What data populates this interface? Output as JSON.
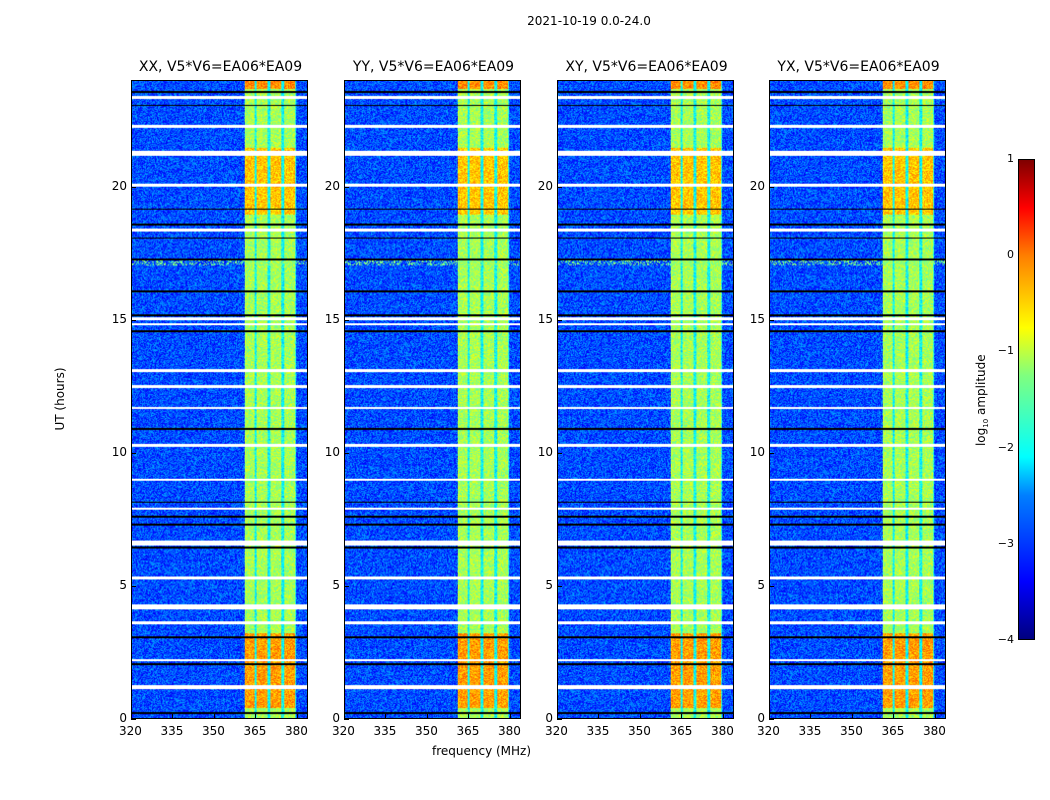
{
  "suptitle": "2021-10-19 0.0-24.0",
  "chart_data": {
    "type": "heatmap",
    "panels": [
      {
        "title": "XX, V5*V6=EA06*EA09"
      },
      {
        "title": "YY, V5*V6=EA06*EA09"
      },
      {
        "title": "XY, V5*V6=EA06*EA09"
      },
      {
        "title": "YX, V5*V6=EA06*EA09"
      }
    ],
    "xlabel": "frequency (MHz)",
    "ylabel": "UT (hours)",
    "xlim": [
      320,
      384
    ],
    "ylim": [
      0,
      24
    ],
    "xticks": [
      "320",
      "335",
      "350",
      "365",
      "380"
    ],
    "xtick_values": [
      320,
      335,
      350,
      365,
      380
    ],
    "yticks": [
      "0",
      "5",
      "10",
      "15",
      "20"
    ],
    "ytick_values": [
      0,
      5,
      10,
      15,
      20
    ],
    "colorbar": {
      "label_main": "log",
      "label_sub": "10",
      "label_rest": " amplitude",
      "range": [
        -4,
        1
      ],
      "ticks": [
        "1",
        "0",
        "−1",
        "−2",
        "−3",
        "−4"
      ],
      "tick_values": [
        1,
        0,
        -1,
        -2,
        -3,
        -4
      ],
      "colormap": "jet"
    },
    "background_level": -3.0,
    "rfi_band_mhz": [
      361,
      380
    ],
    "rfi_subbands_mhz": [
      [
        361,
        364.5
      ],
      [
        365.5,
        369.5
      ],
      [
        370.5,
        374.5
      ],
      [
        375.5,
        379.5
      ]
    ],
    "rfi_band_level": -1.3,
    "bright_periods_hours": [
      [
        0.4,
        3.2,
        -0.4
      ],
      [
        19.0,
        21.5,
        -0.6
      ],
      [
        23.7,
        24,
        -0.3
      ]
    ],
    "flagged_hours_white": [
      1.15,
      1.2,
      4.15,
      4.25,
      6.55,
      6.65,
      14.85,
      15.05,
      21.25,
      21.35,
      23.4,
      22.3,
      20.1,
      18.4,
      13.1,
      12.5,
      11.7,
      10.3,
      9.0,
      7.9,
      5.3,
      3.6,
      2.2
    ],
    "flagged_hours_black": [
      0.2,
      2.05,
      3.05,
      6.45,
      7.3,
      7.6,
      8.15,
      10.9,
      14.6,
      15.2,
      16.1,
      17.3,
      18.1,
      18.6,
      19.2,
      23.6,
      23.1
    ]
  }
}
